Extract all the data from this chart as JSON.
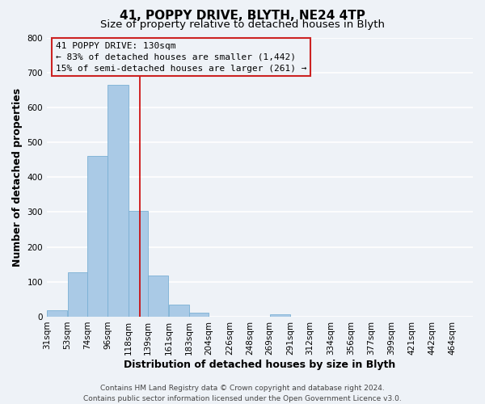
{
  "title": "41, POPPY DRIVE, BLYTH, NE24 4TP",
  "subtitle": "Size of property relative to detached houses in Blyth",
  "xlabel": "Distribution of detached houses by size in Blyth",
  "ylabel": "Number of detached properties",
  "bar_left_edges": [
    31,
    53,
    74,
    96,
    118,
    139,
    161,
    183,
    204,
    226,
    248,
    269,
    291,
    312,
    334,
    356,
    377,
    399,
    421,
    442
  ],
  "bar_widths": [
    22,
    21,
    22,
    22,
    21,
    22,
    22,
    21,
    22,
    22,
    21,
    22,
    21,
    22,
    22,
    21,
    22,
    22,
    21,
    22
  ],
  "bar_heights": [
    18,
    128,
    460,
    665,
    303,
    117,
    35,
    12,
    0,
    0,
    0,
    8,
    0,
    0,
    0,
    0,
    0,
    0,
    0,
    0
  ],
  "bar_color": "#aacae6",
  "bar_edge_color": "#7ab0d4",
  "tick_labels": [
    "31sqm",
    "53sqm",
    "74sqm",
    "96sqm",
    "118sqm",
    "139sqm",
    "161sqm",
    "183sqm",
    "204sqm",
    "226sqm",
    "248sqm",
    "269sqm",
    "291sqm",
    "312sqm",
    "334sqm",
    "356sqm",
    "377sqm",
    "399sqm",
    "421sqm",
    "442sqm",
    "464sqm"
  ],
  "tick_positions": [
    31,
    53,
    74,
    96,
    118,
    139,
    161,
    183,
    204,
    226,
    248,
    269,
    291,
    312,
    334,
    356,
    377,
    399,
    421,
    442,
    464
  ],
  "vline_x": 130,
  "vline_color": "#cc0000",
  "ylim": [
    0,
    800
  ],
  "yticks": [
    0,
    100,
    200,
    300,
    400,
    500,
    600,
    700,
    800
  ],
  "xlim_left": 31,
  "xlim_right": 486,
  "annotation_line1": "41 POPPY DRIVE: 130sqm",
  "annotation_line2": "← 83% of detached houses are smaller (1,442)",
  "annotation_line3": "15% of semi-detached houses are larger (261) →",
  "footer_line1": "Contains HM Land Registry data © Crown copyright and database right 2024.",
  "footer_line2": "Contains public sector information licensed under the Open Government Licence v3.0.",
  "background_color": "#eef2f7",
  "grid_color": "#ffffff",
  "title_fontsize": 11,
  "subtitle_fontsize": 9.5,
  "axis_label_fontsize": 9,
  "tick_fontsize": 7.5,
  "annotation_fontsize": 8,
  "footer_fontsize": 6.5
}
